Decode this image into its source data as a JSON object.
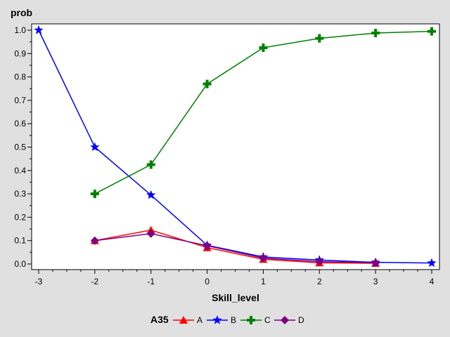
{
  "chart_data": {
    "type": "line",
    "xlabel": "Skill_level",
    "ylabel": "prob",
    "xlim": [
      -3,
      4
    ],
    "ylim": [
      0,
      1.0
    ],
    "x_ticks": [
      "-3",
      "-2",
      "-1",
      "0",
      "1",
      "2",
      "3",
      "4"
    ],
    "y_ticks": [
      "0.0",
      "0.1",
      "0.2",
      "0.3",
      "0.4",
      "0.5",
      "0.6",
      "0.7",
      "0.8",
      "0.9",
      "1.0"
    ],
    "grid": false,
    "legend_title": "A35",
    "legend_position": "bottom",
    "series": [
      {
        "name": "A",
        "color": "#ff0000",
        "marker": "triangle",
        "x": [
          -2,
          -1,
          0,
          1,
          2,
          3
        ],
        "values": [
          0.1,
          0.145,
          0.07,
          0.02,
          0.005,
          0.003
        ]
      },
      {
        "name": "B",
        "color": "#0000ff",
        "marker": "star",
        "x": [
          -3,
          -2,
          -1,
          0,
          1,
          2,
          3,
          4
        ],
        "values": [
          1.0,
          0.5,
          0.295,
          0.08,
          0.03,
          0.017,
          0.007,
          0.004
        ]
      },
      {
        "name": "C",
        "color": "#008000",
        "marker": "plus",
        "x": [
          -2,
          -1,
          0,
          1,
          2,
          3,
          4
        ],
        "values": [
          0.3,
          0.425,
          0.77,
          0.925,
          0.965,
          0.988,
          0.995
        ]
      },
      {
        "name": "D",
        "color": "#800080",
        "marker": "diamond",
        "x": [
          -2,
          -1,
          0,
          1,
          2,
          3
        ],
        "values": [
          0.1,
          0.13,
          0.078,
          0.025,
          0.01,
          0.005
        ]
      }
    ]
  }
}
